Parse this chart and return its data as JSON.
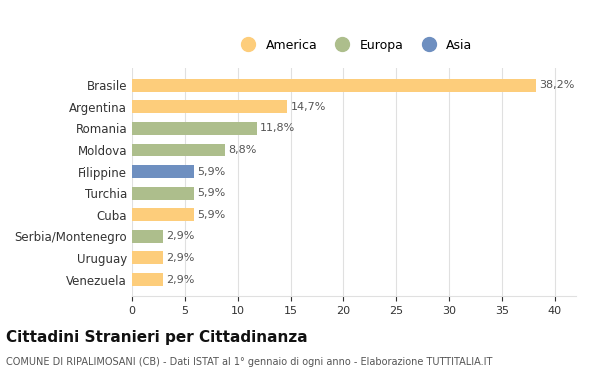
{
  "countries": [
    "Brasile",
    "Argentina",
    "Romania",
    "Moldova",
    "Filippine",
    "Turchia",
    "Cuba",
    "Serbia/Montenegro",
    "Uruguay",
    "Venezuela"
  ],
  "values": [
    38.2,
    14.7,
    11.8,
    8.8,
    5.9,
    5.9,
    5.9,
    2.9,
    2.9,
    2.9
  ],
  "continents": [
    "America",
    "America",
    "Europa",
    "Europa",
    "Asia",
    "Europa",
    "America",
    "Europa",
    "America",
    "America"
  ],
  "colors": {
    "America": "#FDCD7B",
    "Europa": "#ADBE8C",
    "Asia": "#6E8FC0"
  },
  "legend_order": [
    "America",
    "Europa",
    "Asia"
  ],
  "title": "Cittadini Stranieri per Cittadinanza",
  "subtitle": "COMUNE DI RIPALIMOSANI (CB) - Dati ISTAT al 1° gennaio di ogni anno - Elaborazione TUTTITALIA.IT",
  "xlim": [
    0,
    42
  ],
  "xticks": [
    0,
    5,
    10,
    15,
    20,
    25,
    30,
    35,
    40
  ],
  "bg_color": "#FFFFFF",
  "grid_color": "#E0E0E0"
}
